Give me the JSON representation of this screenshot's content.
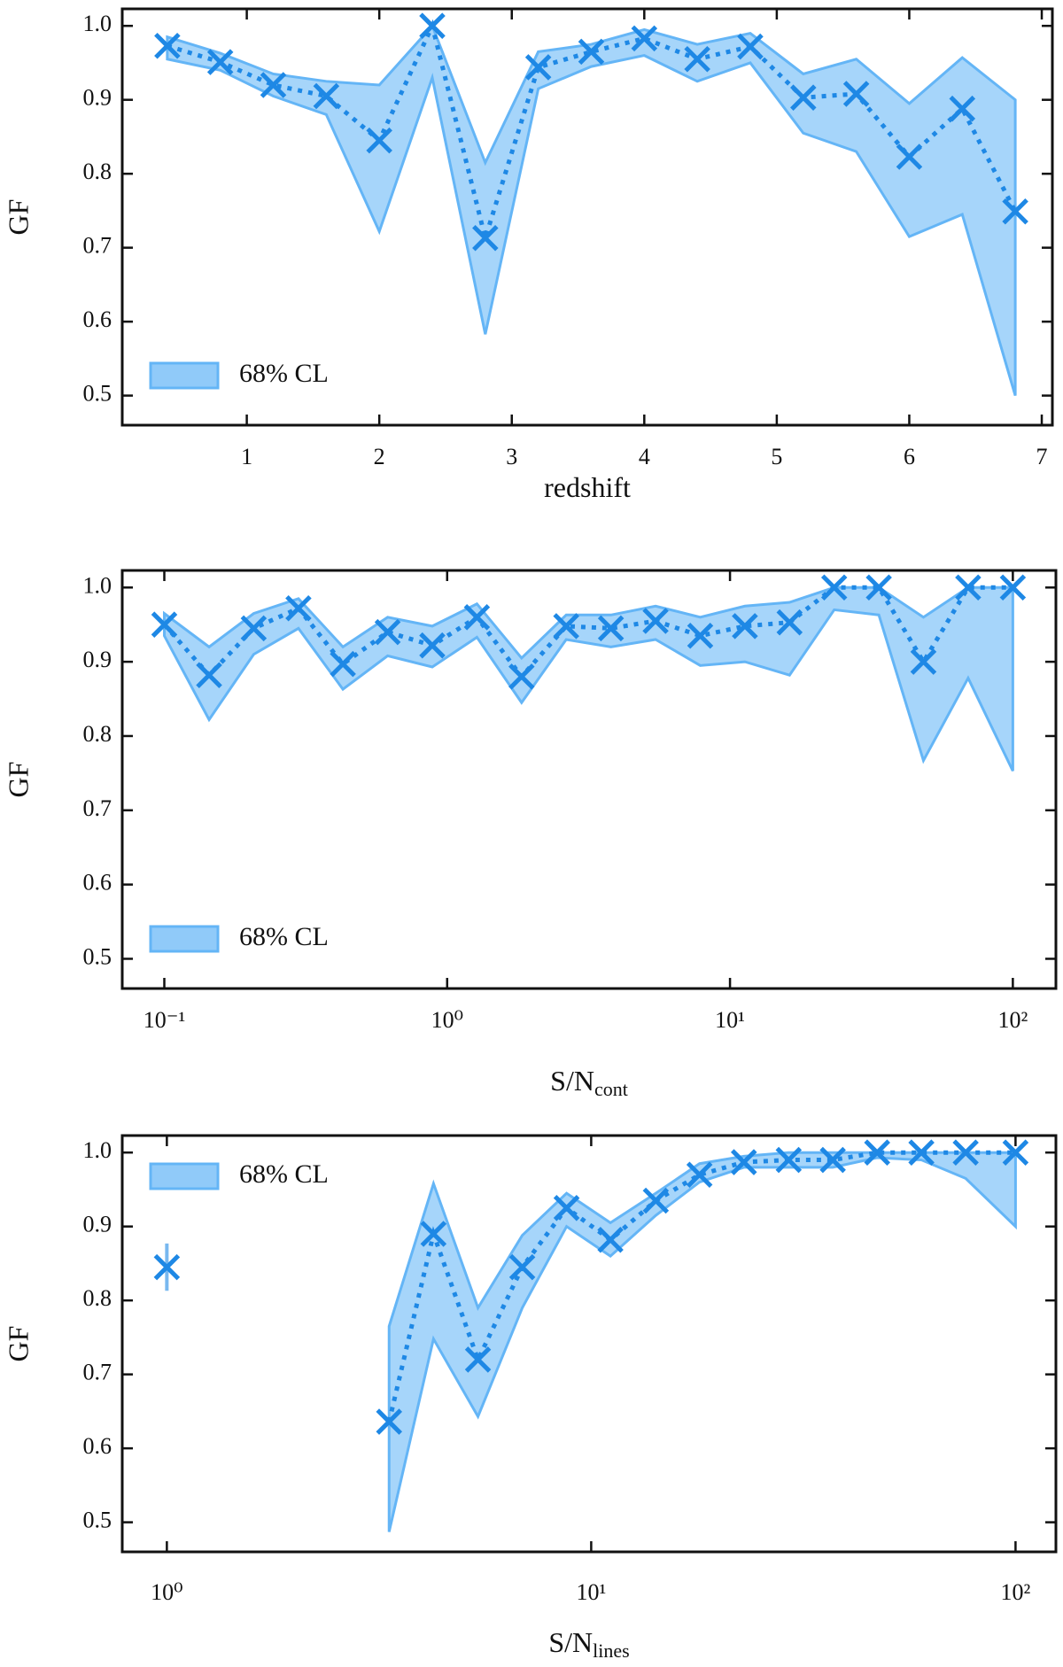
{
  "chart_data": [
    {
      "type": "line",
      "xscale": "linear",
      "xlabel": "redshift",
      "ylabel": "GF",
      "xlim": [
        0.06,
        7.08
      ],
      "xticks": [
        1,
        2,
        3,
        4,
        5,
        6,
        7
      ],
      "ylim": [
        0.46,
        1.023
      ],
      "yticks": [
        0.5,
        0.6,
        0.7,
        0.8,
        0.9,
        {
          "value": 1,
          "label": "1.0"
        }
      ],
      "color": "#1e88e5",
      "band_color": "#90caf9",
      "band_edge": "#64b5f6",
      "legend_loc": "lower left",
      "x": [
        0.4,
        0.8,
        1.2,
        1.6,
        2.0,
        2.4,
        2.8,
        3.2,
        3.6,
        4.0,
        4.4,
        4.8,
        5.2,
        5.6,
        6.0,
        6.4,
        6.8
      ],
      "values": [
        0.973,
        0.951,
        0.92,
        0.905,
        0.845,
        1.0,
        0.713,
        0.944,
        0.965,
        0.983,
        0.955,
        0.972,
        0.903,
        0.908,
        0.823,
        0.888,
        0.749
      ],
      "band": {
        "name": "68% CL",
        "lower": [
          0.955,
          0.94,
          0.905,
          0.88,
          0.722,
          0.93,
          0.583,
          0.915,
          0.945,
          0.96,
          0.925,
          0.95,
          0.855,
          0.83,
          0.715,
          0.745,
          0.5
        ],
        "upper": [
          0.985,
          0.963,
          0.935,
          0.925,
          0.92,
          1.0,
          0.815,
          0.965,
          0.975,
          0.995,
          0.975,
          0.99,
          0.935,
          0.955,
          0.895,
          0.957,
          0.9
        ]
      }
    },
    {
      "type": "line",
      "xscale": "log",
      "xlabel": "S/N",
      "xlabel_subscript": "cont",
      "ylabel": "GF",
      "xlim": [
        0.071,
        142
      ],
      "xticks": [
        {
          "value": 0.1,
          "label": "10⁻¹"
        },
        {
          "value": 1,
          "label": "10⁰"
        },
        {
          "value": 10,
          "label": "10¹"
        },
        {
          "value": 100,
          "label": "10²"
        }
      ],
      "ylim": [
        0.46,
        1.023
      ],
      "yticks": [
        0.5,
        0.6,
        0.7,
        0.8,
        0.9,
        {
          "value": 1,
          "label": "1.0"
        }
      ],
      "color": "#1e88e5",
      "band_color": "#90caf9",
      "band_edge": "#64b5f6",
      "legend_loc": "lower left",
      "x": [
        0.1,
        0.144,
        0.207,
        0.298,
        0.428,
        0.616,
        0.886,
        1.274,
        1.833,
        2.636,
        3.793,
        5.456,
        7.848,
        11.29,
        16.24,
        23.36,
        33.6,
        48.3,
        69.5,
        100
      ],
      "values": [
        0.95,
        0.882,
        0.945,
        0.972,
        0.897,
        0.94,
        0.922,
        0.96,
        0.88,
        0.948,
        0.945,
        0.955,
        0.935,
        0.948,
        0.953,
        1.0,
        1.0,
        0.9,
        1.0,
        1.0
      ],
      "band": {
        "name": "68% CL",
        "lower": [
          0.935,
          0.822,
          0.91,
          0.945,
          0.863,
          0.908,
          0.893,
          0.933,
          0.845,
          0.93,
          0.92,
          0.93,
          0.895,
          0.9,
          0.882,
          0.97,
          0.963,
          0.767,
          0.878,
          0.753
        ],
        "upper": [
          0.965,
          0.92,
          0.965,
          0.985,
          0.92,
          0.96,
          0.948,
          0.978,
          0.905,
          0.963,
          0.963,
          0.975,
          0.96,
          0.975,
          0.98,
          1.0,
          1.0,
          0.96,
          1.0,
          1.0
        ]
      }
    },
    {
      "type": "line",
      "xscale": "log",
      "xlabel": "S/N",
      "xlabel_subscript": "lines",
      "ylabel": "GF",
      "xlim": [
        0.785,
        124.5
      ],
      "xticks": [
        {
          "value": 1,
          "label": "10⁰"
        },
        {
          "value": 10,
          "label": "10¹"
        },
        {
          "value": 100,
          "label": "10²"
        }
      ],
      "ylim": [
        0.46,
        1.023
      ],
      "yticks": [
        0.5,
        0.6,
        0.7,
        0.8,
        0.9,
        {
          "value": 1,
          "label": "1.0"
        }
      ],
      "color": "#1e88e5",
      "band_color": "#90caf9",
      "band_edge": "#64b5f6",
      "legend_loc": "upper left",
      "x": [
        3.34,
        4.25,
        5.41,
        6.88,
        8.75,
        11.1,
        14.2,
        18.0,
        22.9,
        29.2,
        37.1,
        47.2,
        60.0,
        76.3,
        100
      ],
      "values": [
        0.636,
        0.89,
        0.72,
        0.845,
        0.925,
        0.882,
        0.935,
        0.97,
        0.987,
        0.99,
        0.99,
        1.0,
        1.0,
        1.0,
        1.0
      ],
      "band": {
        "name": "68% CL",
        "lower": [
          0.487,
          0.748,
          0.643,
          0.79,
          0.9,
          0.86,
          0.915,
          0.96,
          0.98,
          0.98,
          0.98,
          0.993,
          0.99,
          0.965,
          0.9
        ],
        "upper": [
          0.765,
          0.958,
          0.79,
          0.888,
          0.945,
          0.905,
          0.945,
          0.985,
          0.995,
          1.0,
          1.0,
          1.0,
          1.0,
          1.0,
          1.0
        ]
      },
      "extra_point": {
        "x": 1,
        "value": 0.845,
        "error": 0.032
      }
    }
  ]
}
